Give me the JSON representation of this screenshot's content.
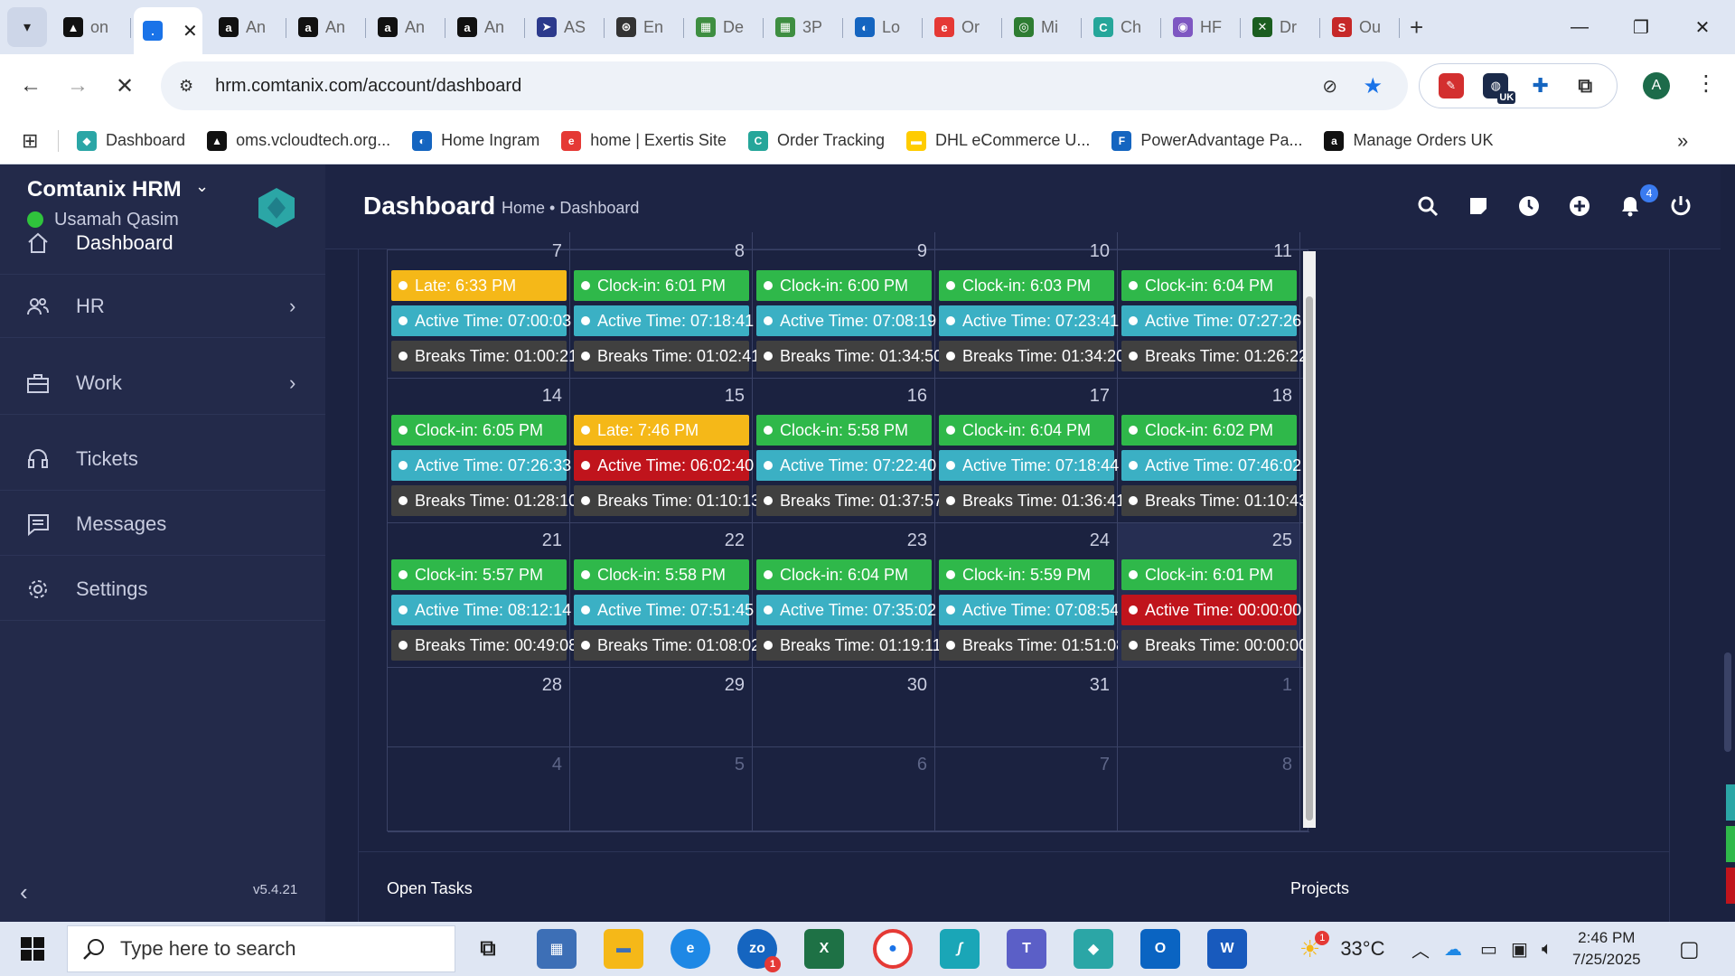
{
  "browser": {
    "tabs": [
      {
        "label": "on",
        "color": "#111111",
        "glyph": "▲"
      },
      {
        "label": "",
        "color": "#1a73e8",
        "glyph": ".",
        "active": true
      },
      {
        "label": "An",
        "color": "#111111",
        "glyph": "a"
      },
      {
        "label": "An",
        "color": "#111111",
        "glyph": "a"
      },
      {
        "label": "An",
        "color": "#111111",
        "glyph": "a"
      },
      {
        "label": "An",
        "color": "#111111",
        "glyph": "a"
      },
      {
        "label": "AS",
        "color": "#2c3a8c",
        "glyph": "➤"
      },
      {
        "label": "En",
        "color": "#333333",
        "glyph": "⊛"
      },
      {
        "label": "De",
        "color": "#3e8e41",
        "glyph": "▦"
      },
      {
        "label": "3P",
        "color": "#3e8e41",
        "glyph": "▦"
      },
      {
        "label": "Lo",
        "color": "#1565c0",
        "glyph": "◐"
      },
      {
        "label": "Or",
        "color": "#e53935",
        "glyph": "e"
      },
      {
        "label": "Mi",
        "color": "#2e7d32",
        "glyph": "◎"
      },
      {
        "label": "Ch",
        "color": "#26a69a",
        "glyph": "C"
      },
      {
        "label": "HF",
        "color": "#7e57c2",
        "glyph": "◉"
      },
      {
        "label": "Dr",
        "color": "#1b5e20",
        "glyph": "✕"
      },
      {
        "label": "Ou",
        "color": "#c62828",
        "glyph": "S"
      }
    ],
    "url": "hrm.comtanix.com/account/dashboard",
    "bookmarks": [
      {
        "label": "Dashboard",
        "color": "#2ba6a6",
        "glyph": "◆"
      },
      {
        "label": "oms.vcloudtech.org...",
        "color": "#111111",
        "glyph": "▲"
      },
      {
        "label": "Home Ingram",
        "color": "#1565c0",
        "glyph": "◐"
      },
      {
        "label": "home | Exertis Site",
        "color": "#e53935",
        "glyph": "e"
      },
      {
        "label": "Order Tracking",
        "color": "#26a69a",
        "glyph": "C"
      },
      {
        "label": "DHL eCommerce U...",
        "color": "#ffcc00",
        "glyph": "▬"
      },
      {
        "label": "PowerAdvantage Pa...",
        "color": "#1565c0",
        "glyph": "F"
      },
      {
        "label": "Manage Orders UK",
        "color": "#111111",
        "glyph": "a"
      }
    ],
    "profile_initial": "A",
    "ext_uk_label": "UK"
  },
  "app": {
    "brand": "Comtanix HRM",
    "user": "Usamah Qasim",
    "nav": [
      {
        "label": "Dashboard",
        "icon": "home-icon",
        "active": true,
        "arrow": false
      },
      {
        "label": "HR",
        "icon": "users-icon",
        "active": false,
        "arrow": true
      },
      {
        "label": "Work",
        "icon": "briefcase-icon",
        "active": false,
        "arrow": true
      },
      {
        "label": "Tickets",
        "icon": "headset-icon",
        "active": false,
        "arrow": false
      },
      {
        "label": "Messages",
        "icon": "message-icon",
        "active": false,
        "arrow": false
      },
      {
        "label": "Settings",
        "icon": "gear-icon",
        "active": false,
        "arrow": false
      }
    ],
    "version": "v5.4.21",
    "page_title": "Dashboard",
    "breadcrumb": "Home • Dashboard",
    "notification_count": "4",
    "calendar": {
      "rows": [
        {
          "days": [
            {
              "num": "7",
              "events": [
                [
                  "yellow",
                  "Late: 6:33 PM"
                ],
                [
                  "cyan",
                  "Active Time: 07:00:03"
                ],
                [
                  "dark",
                  "Breaks Time: 01:00:21"
                ]
              ]
            },
            {
              "num": "8",
              "events": [
                [
                  "green",
                  "Clock-in: 6:01 PM"
                ],
                [
                  "cyan",
                  "Active Time: 07:18:41"
                ],
                [
                  "dark",
                  "Breaks Time: 01:02:41"
                ]
              ]
            },
            {
              "num": "9",
              "events": [
                [
                  "green",
                  "Clock-in: 6:00 PM"
                ],
                [
                  "cyan",
                  "Active Time: 07:08:19"
                ],
                [
                  "dark",
                  "Breaks Time: 01:34:50"
                ]
              ]
            },
            {
              "num": "10",
              "events": [
                [
                  "green",
                  "Clock-in: 6:03 PM"
                ],
                [
                  "cyan",
                  "Active Time: 07:23:41"
                ],
                [
                  "dark",
                  "Breaks Time: 01:34:20"
                ]
              ]
            },
            {
              "num": "11",
              "events": [
                [
                  "green",
                  "Clock-in: 6:04 PM"
                ],
                [
                  "cyan",
                  "Active Time: 07:27:26"
                ],
                [
                  "dark",
                  "Breaks Time: 01:26:22"
                ]
              ]
            }
          ]
        },
        {
          "days": [
            {
              "num": "14",
              "events": [
                [
                  "green",
                  "Clock-in: 6:05 PM"
                ],
                [
                  "cyan",
                  "Active Time: 07:26:33"
                ],
                [
                  "dark",
                  "Breaks Time: 01:28:10"
                ]
              ]
            },
            {
              "num": "15",
              "events": [
                [
                  "yellow",
                  "Late: 7:46 PM"
                ],
                [
                  "red",
                  "Active Time: 06:02:40"
                ],
                [
                  "dark",
                  "Breaks Time: 01:10:13"
                ]
              ]
            },
            {
              "num": "16",
              "events": [
                [
                  "green",
                  "Clock-in: 5:58 PM"
                ],
                [
                  "cyan",
                  "Active Time: 07:22:40"
                ],
                [
                  "dark",
                  "Breaks Time: 01:37:57"
                ]
              ]
            },
            {
              "num": "17",
              "events": [
                [
                  "green",
                  "Clock-in: 6:04 PM"
                ],
                [
                  "cyan",
                  "Active Time: 07:18:44"
                ],
                [
                  "dark",
                  "Breaks Time: 01:36:41"
                ]
              ]
            },
            {
              "num": "18",
              "events": [
                [
                  "green",
                  "Clock-in: 6:02 PM"
                ],
                [
                  "cyan",
                  "Active Time: 07:46:02"
                ],
                [
                  "dark",
                  "Breaks Time: 01:10:43"
                ]
              ]
            }
          ]
        },
        {
          "days": [
            {
              "num": "21",
              "events": [
                [
                  "green",
                  "Clock-in: 5:57 PM"
                ],
                [
                  "cyan",
                  "Active Time: 08:12:14"
                ],
                [
                  "dark",
                  "Breaks Time: 00:49:08"
                ]
              ]
            },
            {
              "num": "22",
              "events": [
                [
                  "green",
                  "Clock-in: 5:58 PM"
                ],
                [
                  "cyan",
                  "Active Time: 07:51:45"
                ],
                [
                  "dark",
                  "Breaks Time: 01:08:02"
                ]
              ]
            },
            {
              "num": "23",
              "events": [
                [
                  "green",
                  "Clock-in: 6:04 PM"
                ],
                [
                  "cyan",
                  "Active Time: 07:35:02"
                ],
                [
                  "dark",
                  "Breaks Time: 01:19:11"
                ]
              ]
            },
            {
              "num": "24",
              "events": [
                [
                  "green",
                  "Clock-in: 5:59 PM"
                ],
                [
                  "cyan",
                  "Active Time: 07:08:54"
                ],
                [
                  "dark",
                  "Breaks Time: 01:51:08"
                ]
              ]
            },
            {
              "num": "25",
              "today": true,
              "events": [
                [
                  "green",
                  "Clock-in: 6:01 PM"
                ],
                [
                  "red",
                  "Active Time: 00:00:00"
                ],
                [
                  "dark",
                  "Breaks Time: 00:00:00"
                ]
              ]
            }
          ]
        },
        {
          "days": [
            {
              "num": "28",
              "events": []
            },
            {
              "num": "29",
              "events": []
            },
            {
              "num": "30",
              "events": []
            },
            {
              "num": "31",
              "events": []
            },
            {
              "num": "1",
              "dim": true,
              "events": []
            }
          ]
        },
        {
          "days": [
            {
              "num": "4",
              "dim": true,
              "events": []
            },
            {
              "num": "5",
              "dim": true,
              "events": []
            },
            {
              "num": "6",
              "dim": true,
              "events": []
            },
            {
              "num": "7",
              "dim": true,
              "events": []
            },
            {
              "num": "8",
              "dim": true,
              "events": []
            }
          ]
        }
      ]
    },
    "footer": {
      "open_tasks": "Open Tasks",
      "projects": "Projects"
    }
  },
  "taskbar": {
    "search_placeholder": "Type here to search",
    "weather": "33°C",
    "time": "2:46 PM",
    "date": "7/25/2025",
    "zoom_badge": "1",
    "weather_badge": "1"
  }
}
